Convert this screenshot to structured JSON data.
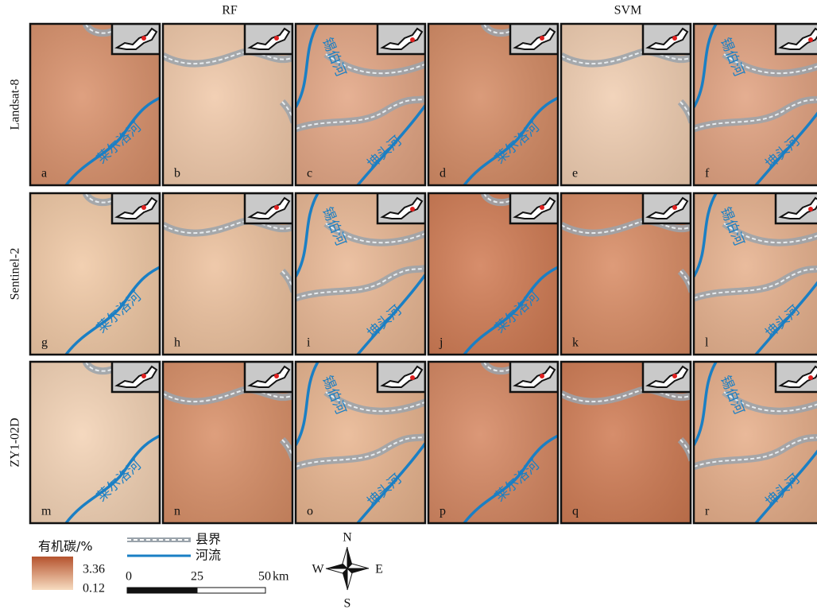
{
  "column_titles": [
    "RF",
    "SVM"
  ],
  "row_titles": [
    "Landsat-8",
    "Sentinel-2",
    "ZY1-02D"
  ],
  "panels": [
    [
      "a",
      "b",
      "c",
      "d",
      "e",
      "f"
    ],
    [
      "g",
      "h",
      "i",
      "j",
      "k",
      "l"
    ],
    [
      "m",
      "n",
      "o",
      "p",
      "q",
      "r"
    ]
  ],
  "river_labels": {
    "main": "莱尔洛河",
    "north": "锡伯河",
    "south": "坤头河"
  },
  "legend": {
    "title": "有机碳/%",
    "max": "3.36",
    "min": "0.12",
    "boundary": "县界",
    "river": "河流"
  },
  "scale_bar": {
    "ticks": [
      "0",
      "25",
      "50"
    ],
    "unit": "km"
  },
  "compass": {
    "n": "N",
    "s": "S",
    "w": "W",
    "e": "E"
  }
}
